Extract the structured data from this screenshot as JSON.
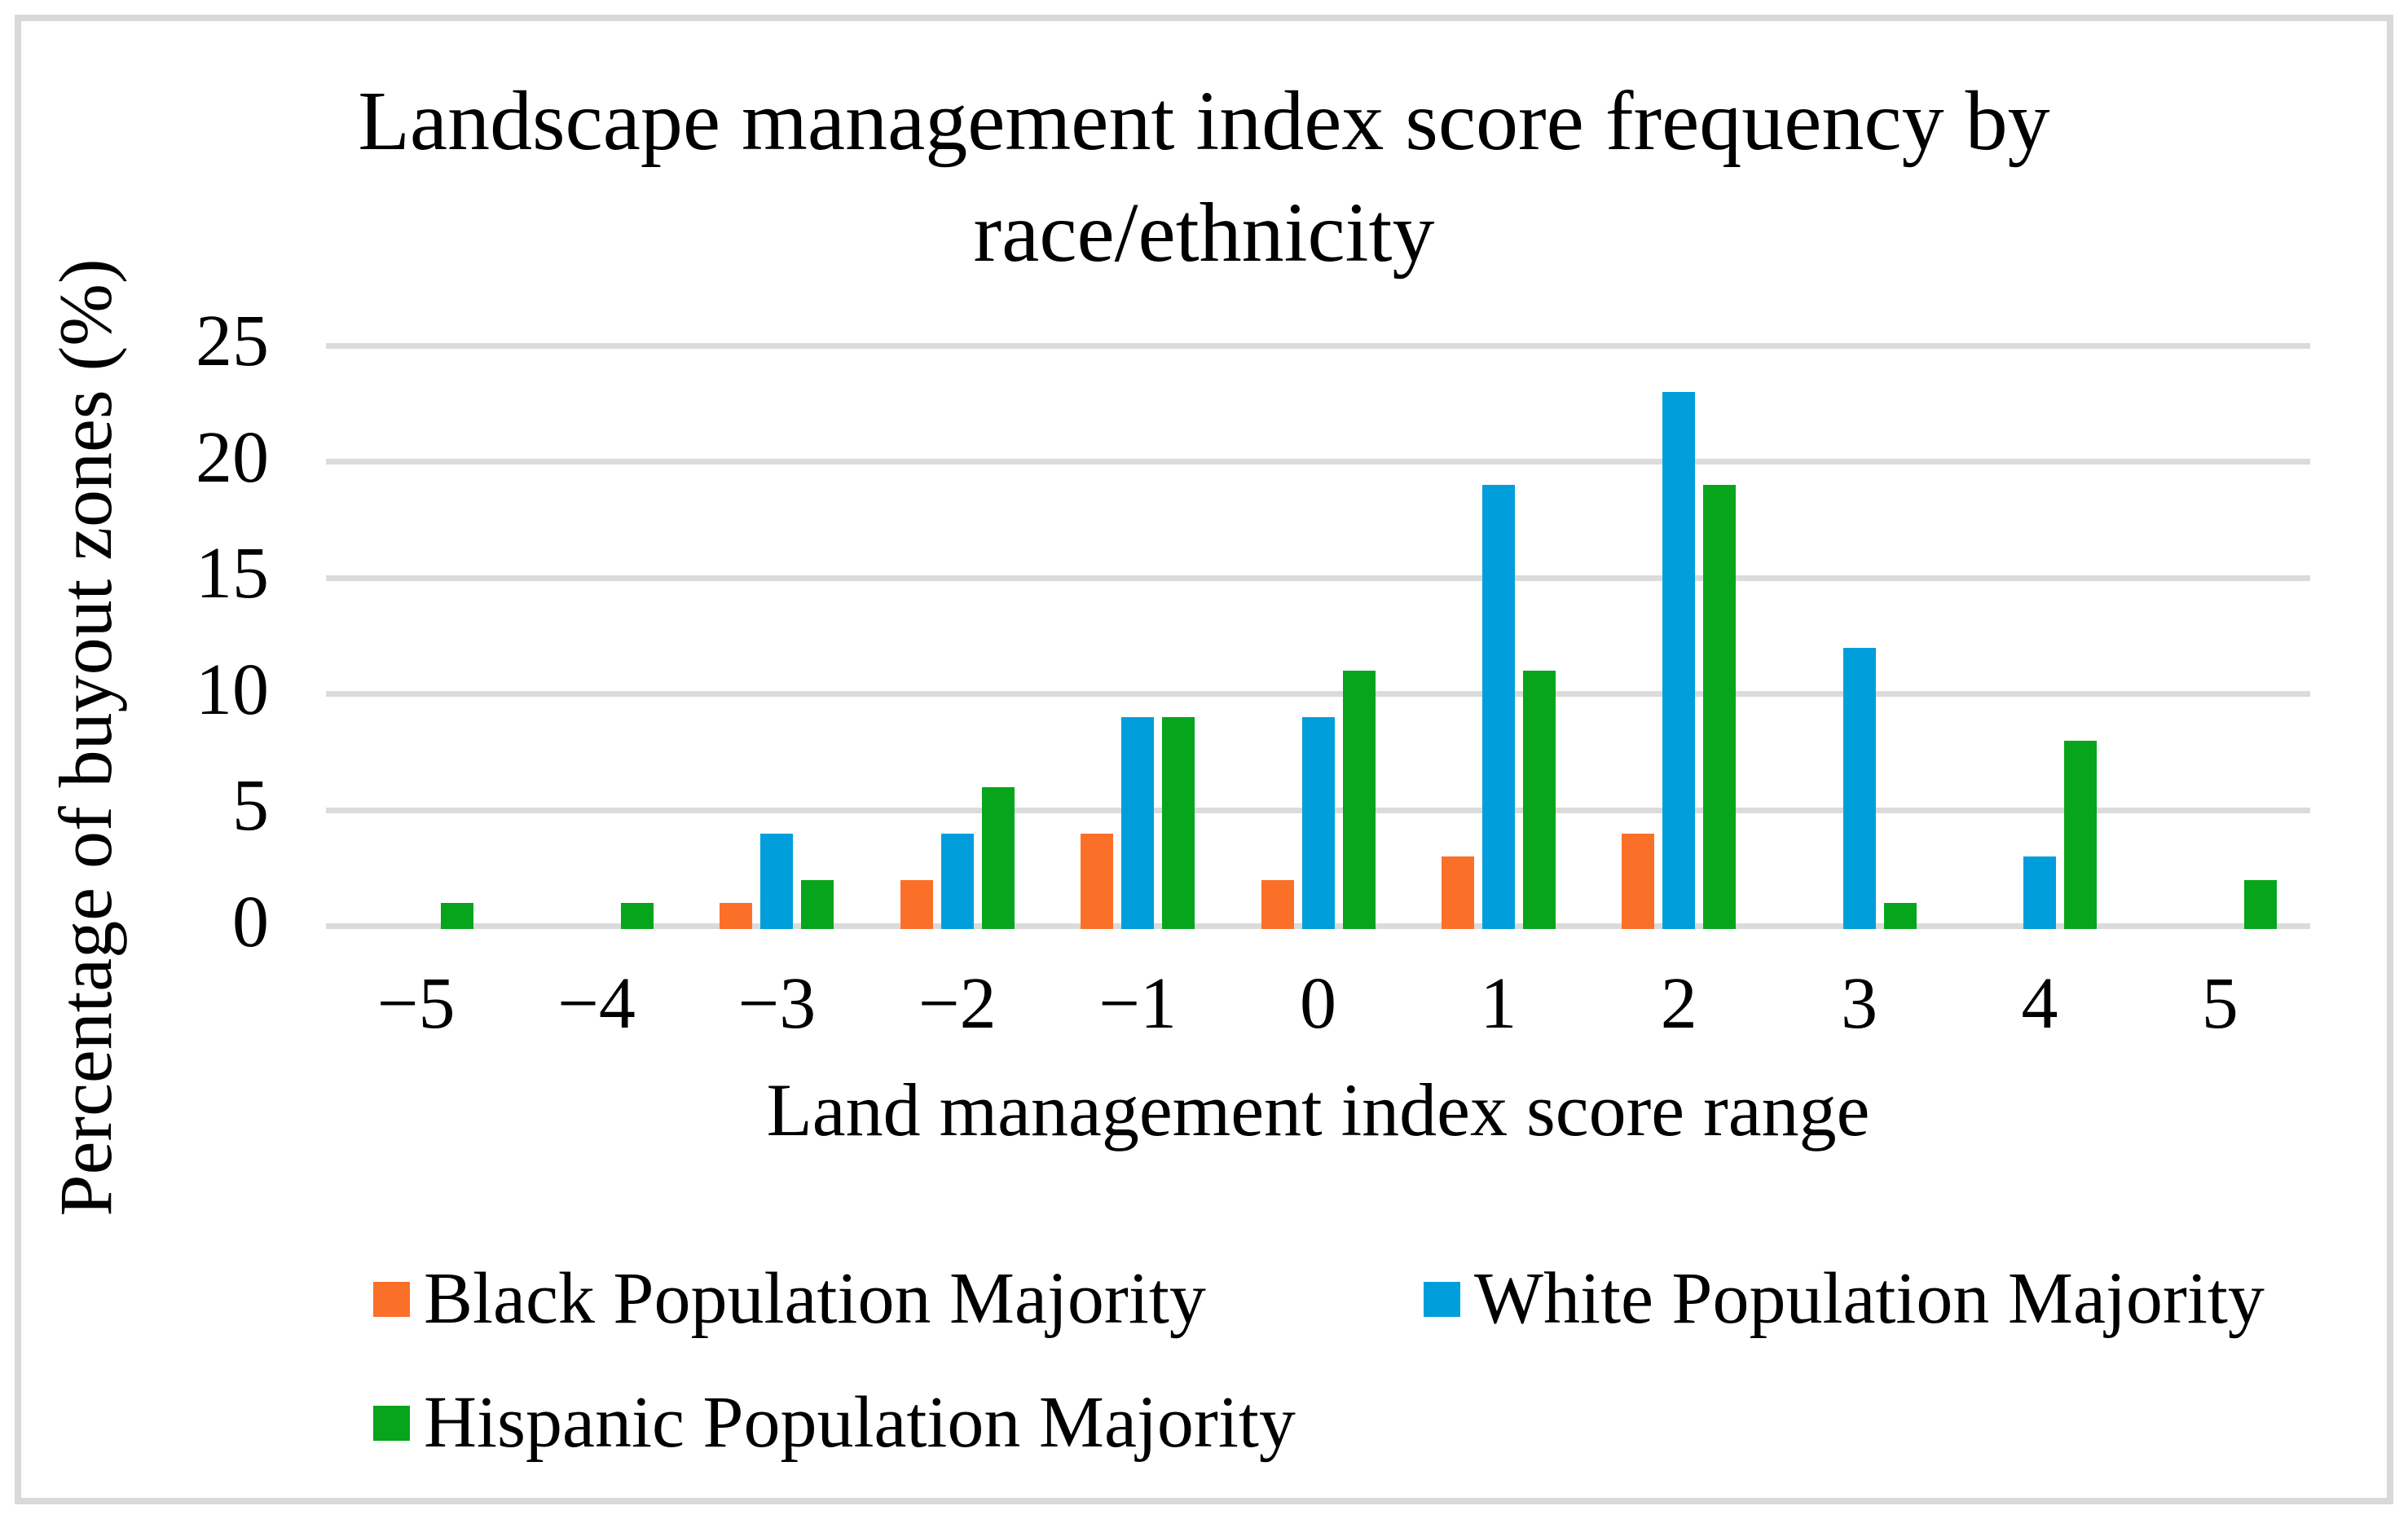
{
  "frame": {
    "border_color": "#D9D9D9",
    "background": "#FFFFFF"
  },
  "title": {
    "line1": "Landscape management index score frequency by",
    "line2": "race/ethnicity"
  },
  "chart_data": {
    "type": "bar",
    "title": "Landscape management index score frequency by race/ethnicity",
    "xlabel": "Land management index score range",
    "ylabel": "Percentage of buyout zones (%)",
    "categories": [
      "−5",
      "−4",
      "−3",
      "−2",
      "−1",
      "0",
      "1",
      "2",
      "3",
      "4",
      "5"
    ],
    "series": [
      {
        "name": "Black Population Majority",
        "color": "#FB7029",
        "values": [
          0,
          0,
          1,
          2,
          4,
          2,
          3,
          4,
          0,
          0,
          0
        ]
      },
      {
        "name": "White Population Majority",
        "color": "#009FDB",
        "values": [
          0,
          0,
          4,
          4,
          9,
          9,
          19,
          23,
          12,
          3,
          0
        ]
      },
      {
        "name": "Hispanic Population Majority",
        "color": "#07A51B",
        "values": [
          1,
          1,
          2,
          6,
          9,
          11,
          11,
          19,
          1,
          8,
          2
        ]
      }
    ],
    "ylim": [
      0,
      25
    ],
    "ytick_step": 5,
    "yticks": [
      "0",
      "5",
      "10",
      "15",
      "20",
      "25"
    ],
    "grid": true,
    "gridline_color": "#DBDBDB",
    "legend_position": "bottom"
  }
}
